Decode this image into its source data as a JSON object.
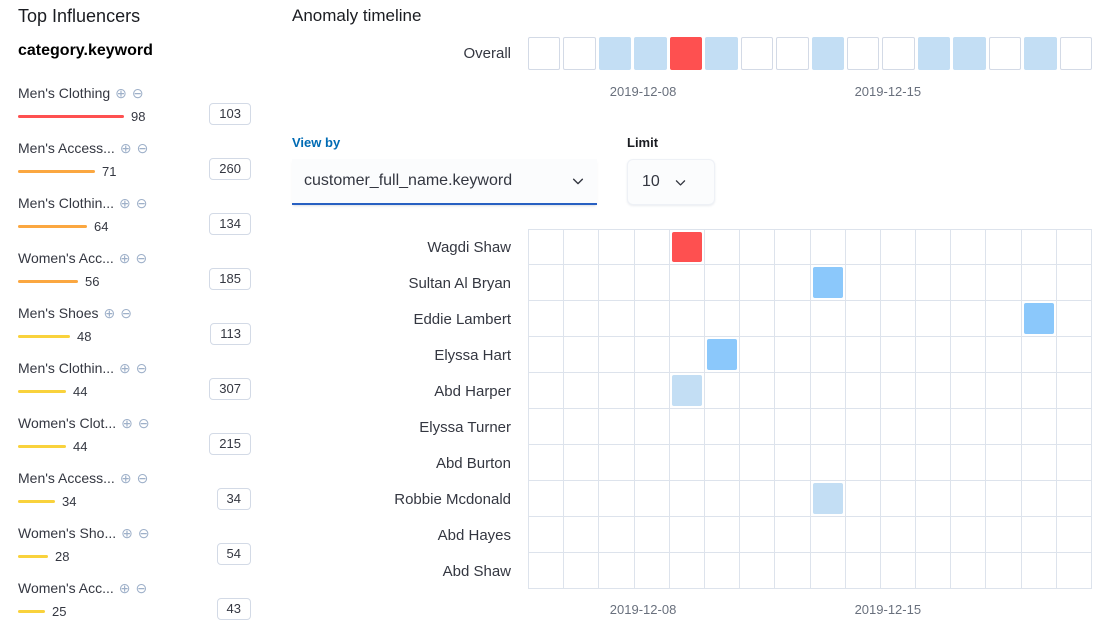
{
  "sidebar": {
    "title": "Top Influencers",
    "field_name": "category.keyword",
    "influencers": [
      {
        "label": "Men's Clothing",
        "score": 98,
        "severity": "critical",
        "badge": "103"
      },
      {
        "label": "Men's Access...",
        "score": 71,
        "severity": "major",
        "badge": "260"
      },
      {
        "label": "Men's Clothin...",
        "score": 64,
        "severity": "major",
        "badge": "134"
      },
      {
        "label": "Women's Acc...",
        "score": 56,
        "severity": "major",
        "badge": "185"
      },
      {
        "label": "Men's Shoes",
        "score": 48,
        "severity": "minor",
        "badge": "113"
      },
      {
        "label": "Men's Clothin...",
        "score": 44,
        "severity": "minor",
        "badge": "307"
      },
      {
        "label": "Women's Clot...",
        "score": 44,
        "severity": "minor",
        "badge": "215"
      },
      {
        "label": "Men's Access...",
        "score": 34,
        "severity": "minor",
        "badge": "34"
      },
      {
        "label": "Women's Sho...",
        "score": 28,
        "severity": "minor",
        "badge": "54"
      },
      {
        "label": "Women's Acc...",
        "score": 25,
        "severity": "minor",
        "badge": "43"
      }
    ]
  },
  "timeline": {
    "title": "Anomaly timeline",
    "overall_label": "Overall",
    "columns": 16,
    "overall_cells": [
      {
        "col": 2,
        "severity": "low"
      },
      {
        "col": 3,
        "severity": "low"
      },
      {
        "col": 4,
        "severity": "critical"
      },
      {
        "col": 5,
        "severity": "low"
      },
      {
        "col": 8,
        "severity": "low"
      },
      {
        "col": 11,
        "severity": "low"
      },
      {
        "col": 12,
        "severity": "low"
      },
      {
        "col": 14,
        "severity": "low"
      }
    ],
    "axis": {
      "labels": [
        "2019-12-08",
        "2019-12-15"
      ],
      "positions_pct": [
        20.4,
        63.8
      ]
    },
    "controls": {
      "view_by_label": "View by",
      "view_by_value": "customer_full_name.keyword",
      "limit_label": "Limit",
      "limit_value": "10"
    },
    "lanes": [
      {
        "label": "Wagdi Shaw",
        "cells": [
          {
            "col": 4,
            "severity": "critical"
          }
        ]
      },
      {
        "label": "Sultan Al Bryan",
        "cells": [
          {
            "col": 8,
            "severity": "warning"
          }
        ]
      },
      {
        "label": "Eddie Lambert",
        "cells": [
          {
            "col": 14,
            "severity": "warning"
          }
        ]
      },
      {
        "label": "Elyssa Hart",
        "cells": [
          {
            "col": 5,
            "severity": "warning"
          }
        ]
      },
      {
        "label": "Abd Harper",
        "cells": [
          {
            "col": 4,
            "severity": "low"
          }
        ]
      },
      {
        "label": "Elyssa Turner",
        "cells": []
      },
      {
        "label": "Abd Burton",
        "cells": []
      },
      {
        "label": "Robbie Mcdonald",
        "cells": [
          {
            "col": 8,
            "severity": "low"
          }
        ]
      },
      {
        "label": "Abd Hayes",
        "cells": []
      },
      {
        "label": "Abd Shaw",
        "cells": []
      }
    ]
  },
  "icons": {
    "add_filter": "plus-in-circle",
    "remove_filter": "minus-in-circle",
    "dropdown": "chevron-down"
  },
  "colors": {
    "critical": "#fe5050",
    "major": "#fba740",
    "minor": "#f9d23c",
    "warning": "#8bc8fb",
    "low": "#c3def4",
    "grid_border": "#dde3ec",
    "cell_border": "#d3dae6",
    "link_blue": "#006bb4",
    "focus_underline": "#2860c2",
    "text": "#343741",
    "subdued_text": "#69707d"
  }
}
